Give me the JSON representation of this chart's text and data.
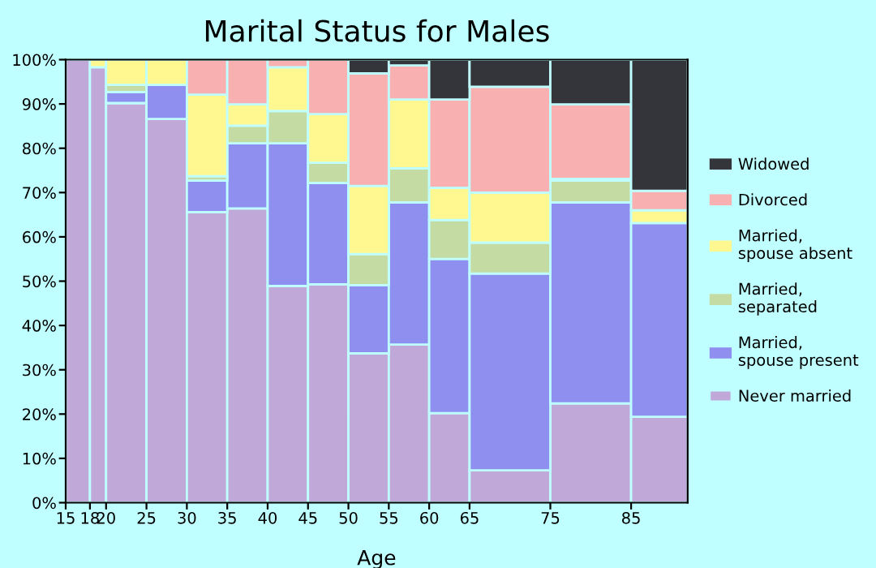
{
  "chart_data": {
    "type": "bar",
    "stacked": true,
    "title": "Marital Status for Males",
    "xlabel": "Age",
    "x": [
      16.5,
      19,
      22.5,
      27.5,
      32.5,
      37.5,
      42.5,
      47.5,
      52.5,
      57.5,
      62.5,
      70,
      80,
      88.5
    ],
    "xlim": [
      15,
      92
    ],
    "xticks": [
      15,
      18,
      20,
      25,
      30,
      35,
      40,
      45,
      50,
      55,
      60,
      65,
      75,
      85
    ],
    "ylim": [
      0,
      100
    ],
    "yticks": [
      {
        "value": 0,
        "label": "0%"
      },
      {
        "value": 10,
        "label": "10%"
      },
      {
        "value": 20,
        "label": "20%"
      },
      {
        "value": 30,
        "label": "30%"
      },
      {
        "value": 40,
        "label": "40%"
      },
      {
        "value": 50,
        "label": "50%"
      },
      {
        "value": 60,
        "label": "60%"
      },
      {
        "value": 70,
        "label": "70%"
      },
      {
        "value": 80,
        "label": "80%"
      },
      {
        "value": 90,
        "label": "90%"
      },
      {
        "value": 100,
        "label": "100%"
      }
    ],
    "grid": false,
    "legend": "right",
    "series": [
      {
        "name": "Never married",
        "color": "#c0a8d8",
        "values": [
          100,
          98.3,
          90.2,
          86.6,
          65.6,
          66.4,
          48.9,
          49.3,
          33.7,
          35.7,
          20.2,
          7.3,
          22.4,
          19.4
        ]
      },
      {
        "name": "Married, spouse present",
        "color": "#8f8ff0",
        "values": [
          0,
          0,
          2.5,
          7.7,
          7.1,
          14.7,
          32.2,
          22.9,
          15.4,
          32.1,
          34.8,
          44.4,
          45.4,
          43.7
        ]
      },
      {
        "name": "Married, separated",
        "color": "#c4dba4",
        "values": [
          0,
          0,
          1.6,
          0,
          1.0,
          4.0,
          7.3,
          4.5,
          7.0,
          7.7,
          8.8,
          7.0,
          4.9,
          0
        ]
      },
      {
        "name": "Married, spouse absent",
        "color": "#fff890",
        "values": [
          0,
          1.7,
          5.7,
          5.7,
          18.4,
          4.8,
          9.9,
          11.0,
          15.4,
          15.5,
          7.3,
          11.3,
          0.4,
          2.9
        ]
      },
      {
        "name": "Divorced",
        "color": "#f8b0b0",
        "values": [
          0,
          0,
          0,
          0,
          7.9,
          10.1,
          1.7,
          12.3,
          25.4,
          7.7,
          19.9,
          23.9,
          16.8,
          4.4
        ]
      },
      {
        "name": "Widowed",
        "color": "#34353b",
        "values": [
          0,
          0,
          0,
          0,
          0,
          0,
          0,
          0,
          3.1,
          1.3,
          9.0,
          6.1,
          10.1,
          29.6
        ]
      }
    ]
  }
}
